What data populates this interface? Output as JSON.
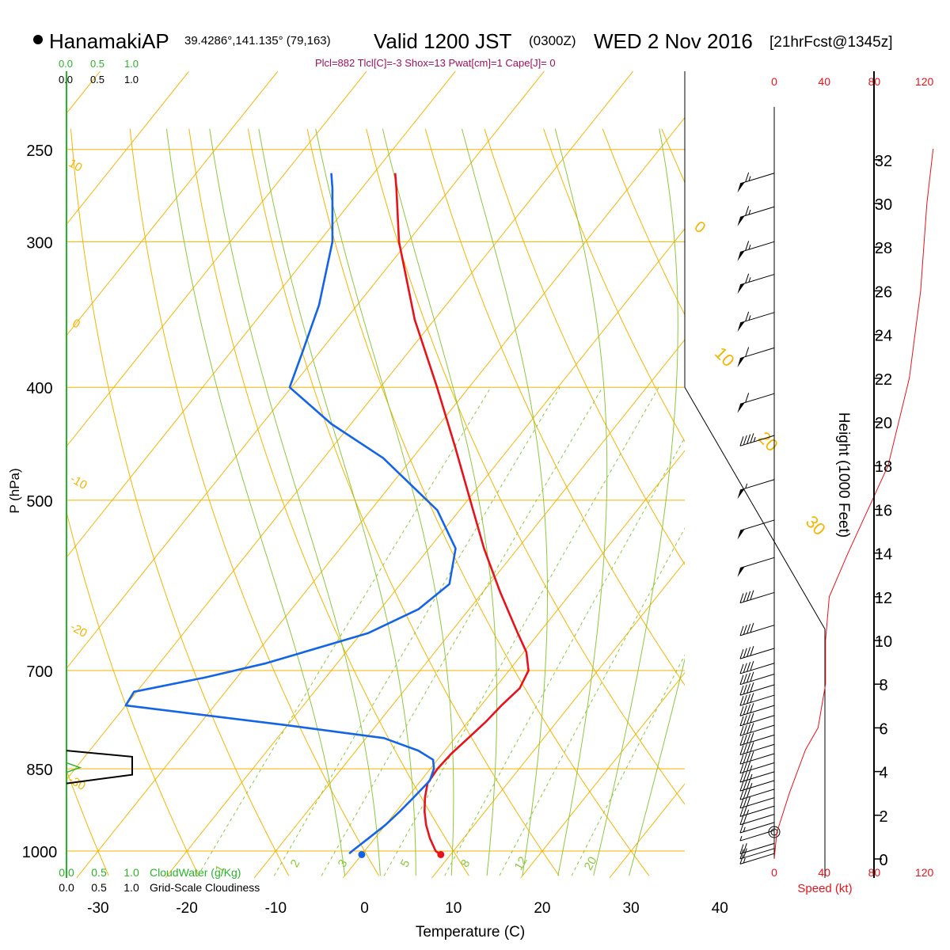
{
  "header": {
    "station": "HanamakiAP",
    "coords": "39.4286°,141.135° (79,163)",
    "valid": "Valid 1200 JST",
    "utc": "(0300Z)",
    "date": "WED 2 Nov 2016",
    "forecast": "[21hrFcst@1345z]",
    "params": "Plcl=882 Tlcl[C]=-3 Shox=13 Pwat[cm]=1 Cape[J]= 0"
  },
  "colors": {
    "temperature": "#e8121a",
    "dewpoint": "#1464e8",
    "isotherm": "#f5b400",
    "dry_adiabat": "#f5b400",
    "moist_adiabat": "#8cc83c",
    "mixing_ratio": "#8cc83c",
    "cloud_green": "#28b428",
    "wind_speed": "#e8121a",
    "frame": "#000000"
  },
  "chart_data": {
    "type": "skew-t",
    "xlabel": "Temperature (C)",
    "ylabel": "P (hPa)",
    "right_axis_label": "Height (1000 Feet)",
    "pressure_levels": [
      250,
      300,
      400,
      500,
      700,
      850,
      1000
    ],
    "x_ticks": [
      -30,
      -20,
      -10,
      0,
      10,
      20,
      30,
      40
    ],
    "height_ticks": [
      0,
      2,
      4,
      6,
      8,
      10,
      12,
      14,
      16,
      18,
      20,
      22,
      24,
      26,
      28,
      30,
      32
    ],
    "cloud_top_ticks": [
      "0.0",
      "0.5",
      "1.0"
    ],
    "cloud_legend": [
      {
        "ticks": [
          "0.0",
          "0.5",
          "1.0"
        ],
        "label": "CloudWater (g/Kg)"
      },
      {
        "ticks": [
          "0.0",
          "0.5",
          "1.0"
        ],
        "label": "Grid-Scale Cloudiness"
      }
    ],
    "speed_ticks": [
      "0",
      "40",
      "80",
      "120"
    ],
    "speed_label": "Speed (kt)",
    "isotherm_labels": [
      "10",
      "0",
      "-10",
      "-20",
      "-30",
      "0",
      "10",
      "20",
      "30"
    ],
    "mixing_ratio_labels": [
      "1",
      "2",
      "3",
      "5",
      "8",
      "12",
      "20"
    ],
    "temperature_profile": [
      {
        "p": 1007,
        "t": 8.9
      },
      {
        "p": 1000,
        "t": 8.0
      },
      {
        "p": 975,
        "t": 6.2
      },
      {
        "p": 950,
        "t": 4.6
      },
      {
        "p": 925,
        "t": 3.2
      },
      {
        "p": 900,
        "t": 2.0
      },
      {
        "p": 875,
        "t": 1.0
      },
      {
        "p": 850,
        "t": 0.8
      },
      {
        "p": 825,
        "t": 1.0
      },
      {
        "p": 800,
        "t": 1.5
      },
      {
        "p": 775,
        "t": 2.0
      },
      {
        "p": 750,
        "t": 2.3
      },
      {
        "p": 725,
        "t": 2.8
      },
      {
        "p": 700,
        "t": 2.2
      },
      {
        "p": 675,
        "t": 0.3
      },
      {
        "p": 650,
        "t": -2.4
      },
      {
        "p": 600,
        "t": -8.0
      },
      {
        "p": 550,
        "t": -13.8
      },
      {
        "p": 500,
        "t": -19.7
      },
      {
        "p": 450,
        "t": -26.2
      },
      {
        "p": 400,
        "t": -33.6
      },
      {
        "p": 350,
        "t": -42.2
      },
      {
        "p": 300,
        "t": -51.0
      },
      {
        "p": 270,
        "t": -56.1
      },
      {
        "p": 262,
        "t": -57.6
      }
    ],
    "dewpoint_profile": [
      {
        "p": 1005,
        "t": -1.5
      },
      {
        "p": 1000,
        "t": -1.4
      },
      {
        "p": 975,
        "t": -0.7
      },
      {
        "p": 950,
        "t": 0.0
      },
      {
        "p": 925,
        "t": 0.4
      },
      {
        "p": 900,
        "t": 0.7
      },
      {
        "p": 870,
        "t": 1.0
      },
      {
        "p": 850,
        "t": 0.4
      },
      {
        "p": 835,
        "t": -0.5
      },
      {
        "p": 820,
        "t": -3.0
      },
      {
        "p": 800,
        "t": -8.0
      },
      {
        "p": 780,
        "t": -20.0
      },
      {
        "p": 750,
        "t": -40.0
      },
      {
        "p": 730,
        "t": -40.3
      },
      {
        "p": 710,
        "t": -33.7
      },
      {
        "p": 690,
        "t": -28.0
      },
      {
        "p": 650,
        "t": -19.2
      },
      {
        "p": 620,
        "t": -15.7
      },
      {
        "p": 590,
        "t": -14.5
      },
      {
        "p": 550,
        "t": -17.0
      },
      {
        "p": 510,
        "t": -22.5
      },
      {
        "p": 460,
        "t": -33.3
      },
      {
        "p": 430,
        "t": -42.2
      },
      {
        "p": 400,
        "t": -50.2
      },
      {
        "p": 375,
        "t": -51.8
      },
      {
        "p": 340,
        "t": -54.3
      },
      {
        "p": 300,
        "t": -58.5
      },
      {
        "p": 270,
        "t": -63.3
      },
      {
        "p": 262,
        "t": -64.8
      }
    ],
    "surface_points": [
      {
        "name": "surface-temperature",
        "p": 1007,
        "t": 8.9
      },
      {
        "name": "surface-dewpoint",
        "p": 1007,
        "t": 0.0
      }
    ],
    "cloudiness_profile": [
      {
        "p": 820,
        "v": 0.0
      },
      {
        "p": 830,
        "v": 1.0
      },
      {
        "p": 850,
        "v": 1.0
      },
      {
        "p": 860,
        "v": 1.0
      },
      {
        "p": 875,
        "v": 0.0
      }
    ],
    "wind_speed_profile": [
      {
        "h": 0,
        "s": 0
      },
      {
        "h": 1.2,
        "s": 2
      },
      {
        "h": 3,
        "s": 12
      },
      {
        "h": 5,
        "s": 25
      },
      {
        "h": 6,
        "s": 35
      },
      {
        "h": 8,
        "s": 41
      },
      {
        "h": 10,
        "s": 41
      },
      {
        "h": 12,
        "s": 44
      },
      {
        "h": 14,
        "s": 59
      },
      {
        "h": 18,
        "s": 91
      },
      {
        "h": 22,
        "s": 108
      },
      {
        "h": 26,
        "s": 117
      },
      {
        "h": 30,
        "s": 122
      },
      {
        "h": 32.5,
        "s": 127
      }
    ],
    "wind_barbs": [
      {
        "p": 262,
        "kt": 65
      },
      {
        "p": 280,
        "kt": 65
      },
      {
        "p": 300,
        "kt": 65
      },
      {
        "p": 320,
        "kt": 65
      },
      {
        "p": 345,
        "kt": 65
      },
      {
        "p": 370,
        "kt": 60
      },
      {
        "p": 405,
        "kt": 60
      },
      {
        "p": 440,
        "kt": 45
      },
      {
        "p": 480,
        "kt": 55
      },
      {
        "p": 520,
        "kt": 50
      },
      {
        "p": 560,
        "kt": 50
      },
      {
        "p": 600,
        "kt": 40
      },
      {
        "p": 640,
        "kt": 40
      },
      {
        "p": 670,
        "kt": 40
      },
      {
        "p": 690,
        "kt": 40
      },
      {
        "p": 705,
        "kt": 40
      },
      {
        "p": 720,
        "kt": 40
      },
      {
        "p": 735,
        "kt": 40
      },
      {
        "p": 750,
        "kt": 40
      },
      {
        "p": 765,
        "kt": 40
      },
      {
        "p": 780,
        "kt": 40
      },
      {
        "p": 795,
        "kt": 40
      },
      {
        "p": 810,
        "kt": 40
      },
      {
        "p": 825,
        "kt": 40
      },
      {
        "p": 840,
        "kt": 35
      },
      {
        "p": 855,
        "kt": 35
      },
      {
        "p": 870,
        "kt": 35
      },
      {
        "p": 885,
        "kt": 30
      },
      {
        "p": 900,
        "kt": 30
      },
      {
        "p": 915,
        "kt": 25
      },
      {
        "p": 930,
        "kt": 20
      },
      {
        "p": 945,
        "kt": 15
      },
      {
        "p": 960,
        "kt": 5
      },
      {
        "p": 985,
        "kt": 20
      },
      {
        "p": 995,
        "kt": 20
      },
      {
        "p": 1005,
        "kt": 15
      }
    ]
  }
}
